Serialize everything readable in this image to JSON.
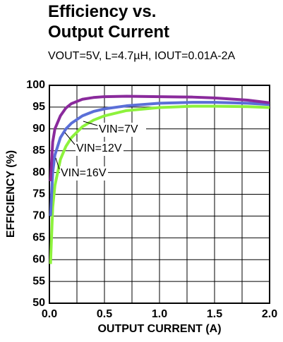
{
  "chart_data": {
    "type": "line",
    "title": "Efficiency vs. Output Current",
    "subtitle": "VOUT=5V, L=4.7µH, IOUT=0.01A-2A",
    "x_label": "OUTPUT CURRENT (A)",
    "y_label": "EFFICIENCY (%)",
    "x": [
      0.01,
      0.03,
      0.05,
      0.1,
      0.15,
      0.2,
      0.3,
      0.4,
      0.5,
      0.7,
      1.0,
      1.3,
      1.5,
      1.8,
      2.0
    ],
    "series": [
      {
        "name": "VIN=7V",
        "color": "#8a2a9c",
        "values": [
          78,
          87,
          90,
          93,
          94.8,
          95.8,
          96.8,
          97.2,
          97.4,
          97.5,
          97.4,
          97.3,
          97.1,
          96.6,
          96.0
        ]
      },
      {
        "name": "VIN=12V",
        "color": "#5b6fd8",
        "values": [
          70,
          80,
          84,
          88,
          90,
          91.3,
          93,
          94,
          94.6,
          95.3,
          95.9,
          96.1,
          96.1,
          95.9,
          95.6
        ]
      },
      {
        "name": "VIN=16V",
        "color": "#8df23c",
        "values": [
          59,
          72,
          77,
          83,
          86,
          88,
          90.5,
          92,
          93,
          94.2,
          94.9,
          95.2,
          95.2,
          95.1,
          94.9
        ]
      }
    ],
    "xlim": [
      0,
      2
    ],
    "ylim": [
      50,
      100
    ],
    "xticks": [
      {
        "value": 0,
        "label": "0.0"
      },
      {
        "value": 0.5,
        "label": "0.5"
      },
      {
        "value": 1,
        "label": "1.0"
      },
      {
        "value": 1.5,
        "label": "1.5"
      },
      {
        "value": 2,
        "label": "2.0"
      }
    ],
    "xgrid": [
      0.25,
      0.5,
      0.75,
      1,
      1.25,
      1.5,
      1.75
    ],
    "yticks": [
      50,
      55,
      60,
      65,
      70,
      75,
      80,
      85,
      90,
      95,
      100
    ],
    "grid": true
  }
}
